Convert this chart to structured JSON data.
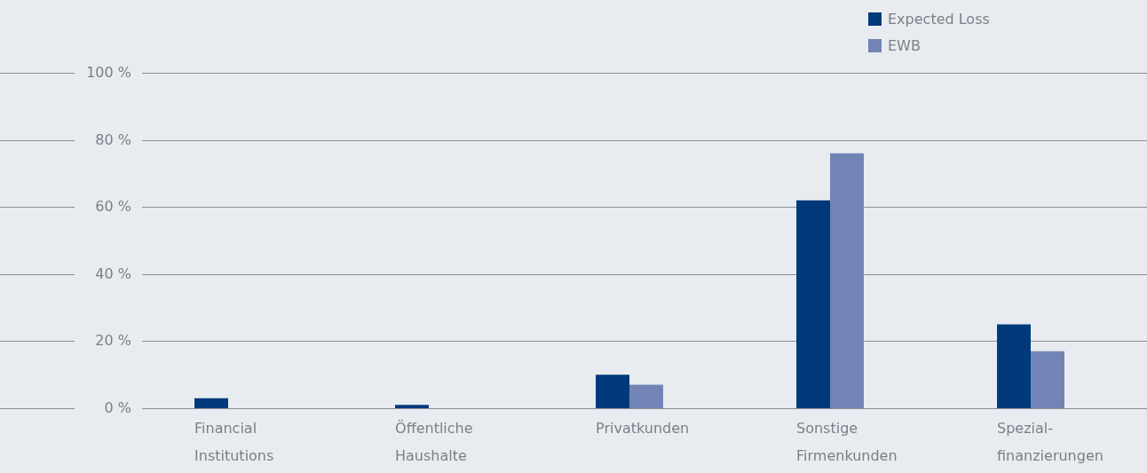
{
  "chart_data": {
    "type": "bar",
    "categories": [
      "Financial Institutions",
      "Öffentliche Haushalte",
      "Privatkunden",
      "Sonstige Firmenkunden",
      "Spezial-finanzierungen"
    ],
    "series": [
      {
        "name": "Expected Loss",
        "color": "#003a7a",
        "values": [
          3,
          1,
          10,
          62,
          25
        ]
      },
      {
        "name": "EWB",
        "color": "#7284b5",
        "values": [
          0,
          0,
          7,
          76,
          17
        ]
      }
    ],
    "ylim": [
      0,
      100
    ],
    "yticks": [
      {
        "value": 0,
        "label": "0 %"
      },
      {
        "value": 20,
        "label": "20 %"
      },
      {
        "value": 40,
        "label": "40 %"
      },
      {
        "value": 60,
        "label": "60 %"
      },
      {
        "value": 80,
        "label": "80 %"
      },
      {
        "value": 100,
        "label": "100 %"
      }
    ],
    "grid": "y",
    "legend": "top right"
  }
}
